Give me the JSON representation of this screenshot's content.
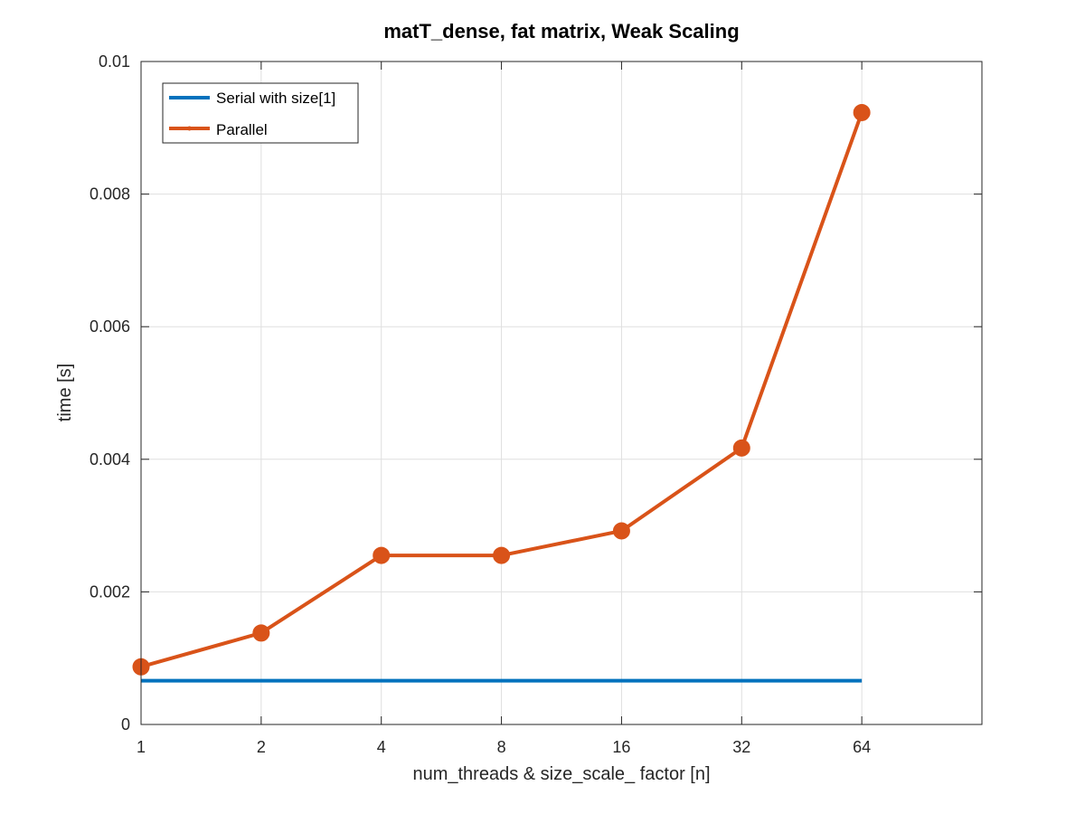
{
  "chart_data": {
    "type": "line",
    "title": "matT_dense, fat matrix, Weak Scaling",
    "xlabel": "num_threads & size_scale_ factor [n]",
    "ylabel": "time [s]",
    "x_scale": "log2",
    "x": [
      1,
      2,
      4,
      8,
      16,
      32,
      64
    ],
    "x_tick_labels": [
      "1",
      "2",
      "4",
      "8",
      "16",
      "32",
      "64"
    ],
    "xlim": [
      1,
      128
    ],
    "ylim": [
      0,
      0.01
    ],
    "y_ticks": [
      0,
      0.002,
      0.004,
      0.006,
      0.008,
      0.01
    ],
    "y_tick_labels": [
      "0",
      "0.002",
      "0.004",
      "0.006",
      "0.008",
      "0.01"
    ],
    "grid": true,
    "legend_position": "top-left",
    "series": [
      {
        "name": "Serial with size[1]",
        "color": "#0072bd",
        "marker": "none",
        "values": [
          0.00066,
          0.00066,
          0.00066,
          0.00066,
          0.00066,
          0.00066,
          0.00066
        ]
      },
      {
        "name": "Parallel",
        "color": "#d95319",
        "marker": "circle",
        "values": [
          0.00087,
          0.00138,
          0.00255,
          0.00255,
          0.00292,
          0.00417,
          0.00923
        ]
      }
    ]
  }
}
